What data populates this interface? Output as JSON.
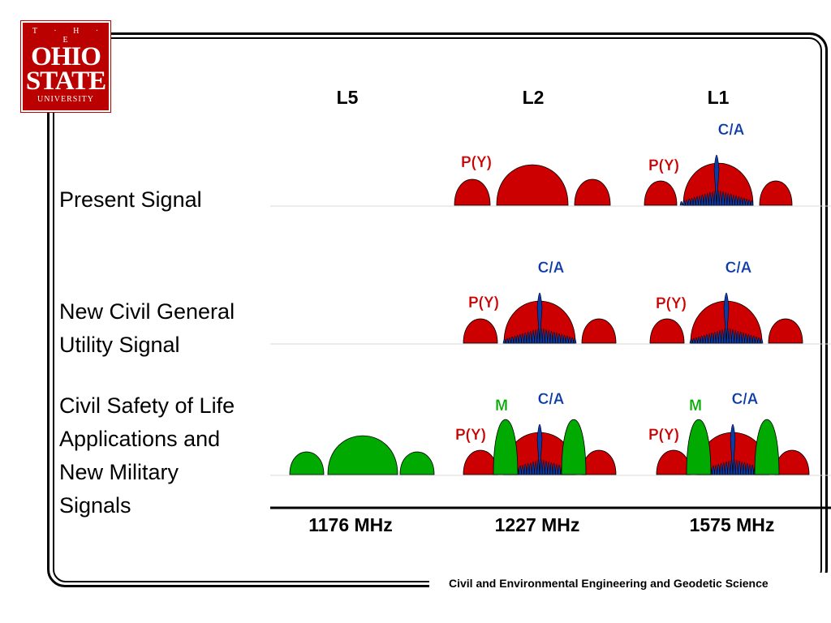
{
  "logo": {
    "line1": "T · H · E",
    "line2": "OHIO",
    "line3": "STATE",
    "line4": "UNIVERSITY"
  },
  "bands": [
    "L5",
    "L2",
    "L1"
  ],
  "rows": [
    {
      "label": "Present Signal"
    },
    {
      "label": "New Civil General Utility Signal"
    },
    {
      "label": "Civil Safety of Life Applications and New Military Signals"
    }
  ],
  "row_label_lines": [
    [
      "Present Signal"
    ],
    [
      "New Civil General",
      "Utility Signal"
    ],
    [
      "Civil Safety of Life",
      "Applications and",
      "New Military",
      "Signals"
    ]
  ],
  "frequencies": [
    "1176 MHz",
    "1227 MHz",
    "1575 MHz"
  ],
  "signal_labels": {
    "py": "P(Y)",
    "ca": "C/A",
    "m": "M"
  },
  "footer": "Civil and Environmental Engineering and Geodetic Science",
  "colors": {
    "red": "#cc0000",
    "blue": "#0d3aa6",
    "green": "#00aa00",
    "logo": "#bb0000"
  }
}
